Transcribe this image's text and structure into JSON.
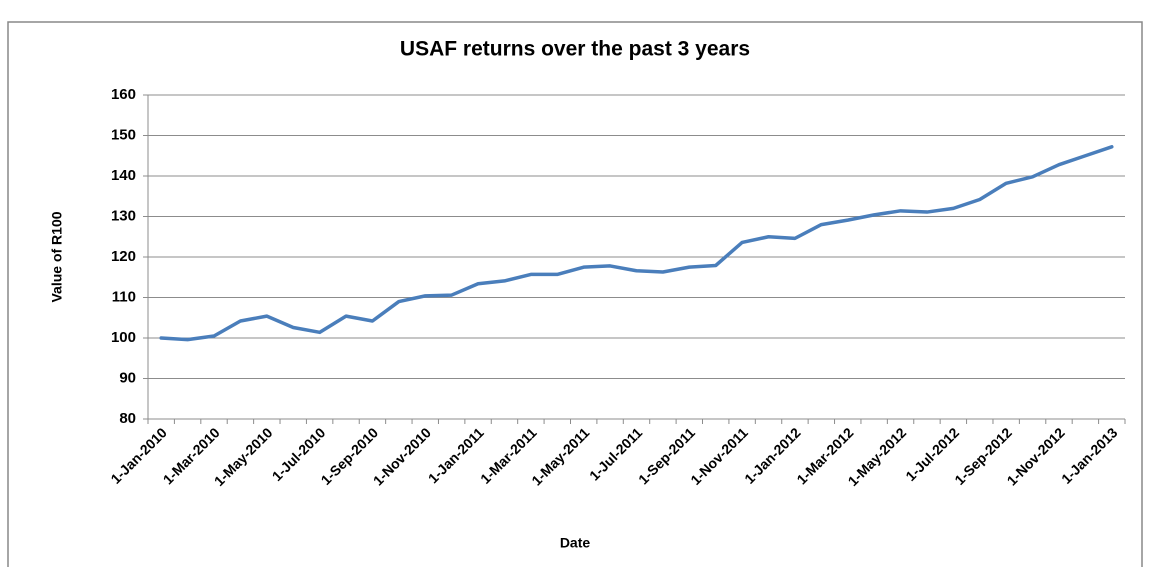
{
  "chart_data": {
    "type": "line",
    "title": "USAF returns over the past 3 years",
    "x_label": "Date",
    "y_label": "Value of R100",
    "categories": [
      "1-Jan-2010",
      null,
      "1-Mar-2010",
      null,
      "1-May-2010",
      null,
      "1-Jul-2010",
      null,
      "1-Sep-2010",
      null,
      "1-Nov-2010",
      null,
      "1-Jan-2011",
      null,
      "1-Mar-2011",
      null,
      "1-May-2011",
      null,
      "1-Jul-2011",
      null,
      "1-Sep-2011",
      null,
      "1-Nov-2011",
      null,
      "1-Jan-2012",
      null,
      "1-Mar-2012",
      null,
      "1-May-2012",
      null,
      "1-Jul-2012",
      null,
      "1-Sep-2012",
      null,
      "1-Nov-2012",
      null,
      "1-Jan-2013"
    ],
    "values": [
      100,
      99.6,
      100.5,
      104.2,
      105.4,
      102.6,
      101.4,
      105.4,
      104.2,
      109,
      110.4,
      110.6,
      113.4,
      114.1,
      115.7,
      115.7,
      117.5,
      117.8,
      116.6,
      116.3,
      117.5,
      117.9,
      123.6,
      125,
      124.6,
      128,
      129.1,
      130.4,
      131.4,
      131.1,
      132,
      134.2,
      138.2,
      139.8,
      142.8,
      145,
      147.2
    ],
    "color": "#4a7ebb",
    "ylim": [
      80,
      160
    ],
    "yticks": [
      80,
      90,
      100,
      110,
      120,
      130,
      140,
      150,
      160
    ],
    "grid": true
  }
}
